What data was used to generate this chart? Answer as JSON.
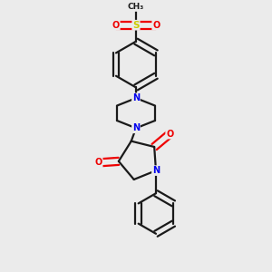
{
  "bg_color": "#ebebeb",
  "bond_color": "#1a1a1a",
  "N_color": "#0000ee",
  "O_color": "#ee0000",
  "S_color": "#cccc00",
  "line_width": 1.6,
  "font_size_atom": 7.0,
  "fig_width": 3.0,
  "fig_height": 3.0,
  "xlim": [
    0.15,
    0.85
  ],
  "ylim": [
    0.02,
    0.98
  ]
}
